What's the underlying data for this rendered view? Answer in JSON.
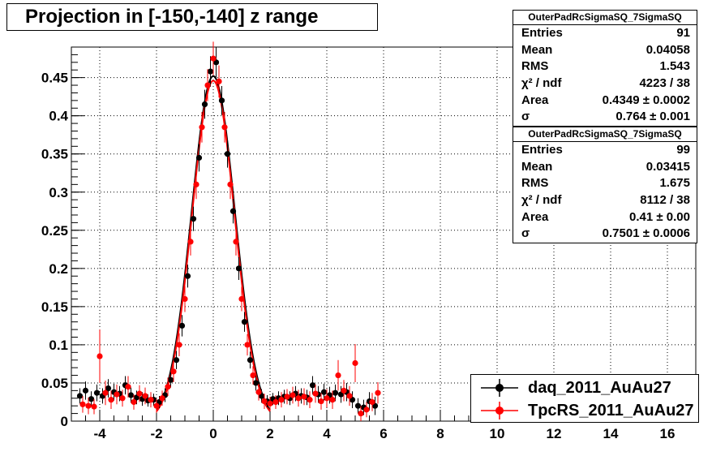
{
  "title": "Projection in [-150,-140] z range",
  "colors": {
    "daq": "#000000",
    "tpcrs": "#ff0000",
    "grid": "#000000"
  },
  "stats": [
    {
      "name": "OuterPadRcSigmaSQ_7SigmaSQ",
      "rows": [
        {
          "label": "Entries",
          "value": "91"
        },
        {
          "label": "Mean",
          "value": "0.04058"
        },
        {
          "label": "RMS",
          "value": "1.543"
        },
        {
          "label": "χ² / ndf",
          "value": "4223 / 38"
        },
        {
          "label": "Area",
          "value": "0.4349 ± 0.0002"
        },
        {
          "label": "σ",
          "value": "0.764 ± 0.001"
        }
      ]
    },
    {
      "name": "OuterPadRcSigmaSQ_7SigmaSQ",
      "rows": [
        {
          "label": "Entries",
          "value": "99"
        },
        {
          "label": "Mean",
          "value": "0.03415"
        },
        {
          "label": "RMS",
          "value": "1.675"
        },
        {
          "label": "χ² / ndf",
          "value": "8112 / 38"
        },
        {
          "label": "Area",
          "value": "0.41 ± 0.00"
        },
        {
          "label": "σ",
          "value": "0.7501 ± 0.0006"
        }
      ]
    }
  ],
  "legend": [
    {
      "label": "daq_2011_AuAu27",
      "color": "#000000"
    },
    {
      "label": "TpcRS_2011_AuAu27",
      "color": "#ff0000"
    }
  ],
  "chart_data": {
    "type": "scatter",
    "title": "Projection in [-150,-140] z range",
    "xlabel": "",
    "ylabel": "",
    "xlim": [
      -5,
      17
    ],
    "ylim": [
      0,
      0.49
    ],
    "xticks": [
      -4,
      -2,
      0,
      2,
      4,
      6,
      8,
      10,
      12,
      14,
      16
    ],
    "xtick_labels": [
      "-4",
      "-2",
      "0",
      "2",
      "4",
      "6",
      "8",
      "10",
      "12",
      "14",
      "16"
    ],
    "yticks": [
      0,
      0.05,
      0.1,
      0.15,
      0.2,
      0.25,
      0.3,
      0.35,
      0.4,
      0.45
    ],
    "ytick_labels": [
      "0",
      "0.05",
      "0.1",
      "0.15",
      "0.2",
      "0.25",
      "0.3",
      "0.35",
      "0.4",
      "0.45"
    ],
    "grid": true,
    "legend_position": "bottom-right",
    "series": [
      {
        "name": "daq_2011_AuAu27",
        "color": "#000000",
        "fit": {
          "mean": 0.0,
          "sigma": 0.764,
          "peak": 0.452,
          "xrange": [
            -2,
            2
          ]
        },
        "x": [
          -4.7,
          -4.5,
          -4.3,
          -4.1,
          -3.9,
          -3.7,
          -3.5,
          -3.3,
          -3.1,
          -2.9,
          -2.7,
          -2.5,
          -2.3,
          -2.1,
          -1.9,
          -1.7,
          -1.5,
          -1.3,
          -1.1,
          -0.9,
          -0.7,
          -0.5,
          -0.3,
          -0.1,
          0.1,
          0.3,
          0.5,
          0.7,
          0.9,
          1.1,
          1.3,
          1.5,
          1.7,
          1.9,
          2.1,
          2.3,
          2.5,
          2.7,
          2.9,
          3.1,
          3.3,
          3.5,
          3.7,
          3.9,
          4.1,
          4.3,
          4.5,
          4.7,
          4.9,
          5.1,
          5.3,
          5.5,
          5.7
        ],
        "y": [
          0.033,
          0.04,
          0.029,
          0.037,
          0.033,
          0.043,
          0.038,
          0.036,
          0.047,
          0.034,
          0.031,
          0.029,
          0.027,
          0.028,
          0.025,
          0.034,
          0.054,
          0.08,
          0.125,
          0.19,
          0.265,
          0.345,
          0.415,
          0.458,
          0.47,
          0.42,
          0.35,
          0.275,
          0.2,
          0.13,
          0.08,
          0.05,
          0.033,
          0.026,
          0.029,
          0.03,
          0.032,
          0.03,
          0.036,
          0.033,
          0.031,
          0.047,
          0.035,
          0.038,
          0.034,
          0.037,
          0.035,
          0.038,
          0.028,
          0.02,
          0.018,
          0.026,
          0.02
        ],
        "err": [
          0.01,
          0.012,
          0.01,
          0.011,
          0.01,
          0.012,
          0.011,
          0.01,
          0.012,
          0.01,
          0.009,
          0.009,
          0.008,
          0.008,
          0.008,
          0.009,
          0.01,
          0.012,
          0.014,
          0.015,
          0.016,
          0.018,
          0.019,
          0.02,
          0.02,
          0.019,
          0.018,
          0.016,
          0.015,
          0.013,
          0.011,
          0.01,
          0.009,
          0.008,
          0.008,
          0.009,
          0.009,
          0.009,
          0.01,
          0.01,
          0.01,
          0.012,
          0.011,
          0.011,
          0.011,
          0.011,
          0.011,
          0.012,
          0.011,
          0.01,
          0.01,
          0.012,
          0.012
        ]
      },
      {
        "name": "TpcRS_2011_AuAu27",
        "color": "#ff0000",
        "fit": {
          "mean": 0.0,
          "sigma": 0.7501,
          "peak": 0.446,
          "xrange": [
            -2,
            2
          ]
        },
        "x": [
          -4.6,
          -4.4,
          -4.2,
          -4.0,
          -3.8,
          -3.6,
          -3.4,
          -3.2,
          -3.0,
          -2.8,
          -2.6,
          -2.4,
          -2.2,
          -2.0,
          -1.8,
          -1.6,
          -1.4,
          -1.2,
          -1.0,
          -0.8,
          -0.6,
          -0.4,
          -0.2,
          0.0,
          0.2,
          0.4,
          0.6,
          0.8,
          1.0,
          1.2,
          1.4,
          1.6,
          1.8,
          2.0,
          2.2,
          2.4,
          2.6,
          2.8,
          3.0,
          3.2,
          3.4,
          3.6,
          3.8,
          4.0,
          4.2,
          4.4,
          4.6,
          4.8,
          5.0,
          5.2,
          5.4,
          5.6,
          5.8
        ],
        "y": [
          0.022,
          0.02,
          0.019,
          0.085,
          0.037,
          0.028,
          0.035,
          0.03,
          0.045,
          0.025,
          0.036,
          0.033,
          0.028,
          0.02,
          0.03,
          0.045,
          0.065,
          0.1,
          0.16,
          0.235,
          0.31,
          0.385,
          0.44,
          0.475,
          0.445,
          0.385,
          0.31,
          0.235,
          0.16,
          0.1,
          0.06,
          0.038,
          0.026,
          0.023,
          0.025,
          0.028,
          0.032,
          0.034,
          0.03,
          0.032,
          0.028,
          0.036,
          0.026,
          0.03,
          0.028,
          0.06,
          0.04,
          0.033,
          0.076,
          0.01,
          0.015,
          0.025,
          0.037
        ],
        "err": [
          0.011,
          0.011,
          0.01,
          0.035,
          0.016,
          0.012,
          0.013,
          0.011,
          0.014,
          0.01,
          0.011,
          0.011,
          0.01,
          0.009,
          0.01,
          0.012,
          0.014,
          0.015,
          0.017,
          0.018,
          0.019,
          0.02,
          0.021,
          0.022,
          0.021,
          0.02,
          0.019,
          0.018,
          0.016,
          0.014,
          0.012,
          0.011,
          0.01,
          0.009,
          0.009,
          0.01,
          0.01,
          0.011,
          0.011,
          0.011,
          0.011,
          0.012,
          0.011,
          0.012,
          0.012,
          0.02,
          0.014,
          0.013,
          0.025,
          0.01,
          0.01,
          0.012,
          0.014
        ]
      }
    ]
  }
}
